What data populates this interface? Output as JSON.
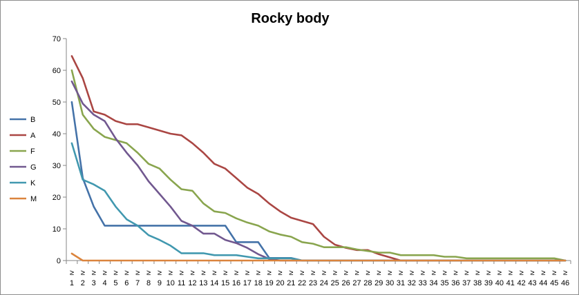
{
  "chart_data": {
    "type": "line",
    "title": "Rocky body",
    "xlabel": "",
    "ylabel": "",
    "ylim": [
      0,
      70
    ],
    "yticks": [
      "0",
      "10",
      "20",
      "30",
      "40",
      "50",
      "60",
      "70"
    ],
    "x_prefix": "≥",
    "categories": [
      "1",
      "2",
      "3",
      "4",
      "5",
      "6",
      "7",
      "8",
      "9",
      "10",
      "11",
      "12",
      "13",
      "14",
      "15",
      "16",
      "17",
      "18",
      "19",
      "20",
      "21",
      "22",
      "23",
      "24",
      "25",
      "26",
      "27",
      "28",
      "29",
      "30",
      "31",
      "32",
      "33",
      "34",
      "35",
      "36",
      "37",
      "38",
      "39",
      "40",
      "41",
      "42",
      "43",
      "44",
      "45",
      "46"
    ],
    "legend_position": "left",
    "grid": false,
    "series": [
      {
        "name": "B",
        "color": "#4472A8",
        "values": [
          50,
          26,
          17,
          11,
          11,
          11,
          11,
          11,
          11,
          11,
          11,
          11,
          11,
          11,
          11,
          5.8,
          5.8,
          5.8,
          0.8,
          0.8,
          0.8,
          0,
          0,
          0,
          0,
          0,
          0,
          0,
          0,
          0,
          0,
          0,
          0,
          0,
          0,
          0,
          0,
          0,
          0,
          0,
          0,
          0,
          0,
          0,
          0,
          0
        ]
      },
      {
        "name": "A",
        "color": "#AA4643",
        "values": [
          64.5,
          57.5,
          47,
          46,
          44,
          43,
          43,
          42,
          41,
          40,
          39.5,
          37,
          34,
          30.5,
          29,
          26,
          23,
          21,
          18,
          15.5,
          13.5,
          12.5,
          11.5,
          7.5,
          5,
          4,
          3.3,
          3.3,
          2,
          1,
          0,
          0,
          0,
          0,
          0,
          0,
          0,
          0,
          0,
          0,
          0,
          0,
          0,
          0,
          0,
          0
        ]
      },
      {
        "name": "F",
        "color": "#89A54E",
        "values": [
          60,
          46,
          41.5,
          39,
          38,
          37,
          34,
          30.5,
          29,
          25.5,
          22.5,
          22,
          18,
          15.5,
          15,
          13.3,
          12,
          11,
          9.2,
          8.2,
          7.5,
          5.8,
          5.3,
          4.2,
          4.2,
          4.2,
          3.5,
          3,
          2.5,
          2.5,
          1.7,
          1.7,
          1.7,
          1.7,
          1.2,
          1.2,
          0.7,
          0.7,
          0.7,
          0.7,
          0.7,
          0.7,
          0.7,
          0.7,
          0.7,
          0
        ]
      },
      {
        "name": "G",
        "color": "#71588F",
        "values": [
          56.5,
          49.5,
          46,
          44,
          38.5,
          34,
          30,
          25,
          21,
          17,
          12.5,
          11,
          8.5,
          8.5,
          6.5,
          5.5,
          4,
          2,
          0.5,
          0,
          0,
          0,
          0,
          0,
          0,
          0,
          0,
          0,
          0,
          0,
          0,
          0,
          0,
          0,
          0,
          0,
          0,
          0,
          0,
          0,
          0,
          0,
          0,
          0,
          0,
          0
        ]
      },
      {
        "name": "K",
        "color": "#4198AF",
        "values": [
          37,
          25.5,
          24,
          22,
          17,
          13,
          11,
          8,
          6.5,
          4.7,
          2.3,
          2.3,
          2.3,
          1.7,
          1.7,
          1.7,
          1.2,
          0.7,
          0.7,
          0.7,
          0.7,
          0,
          0,
          0,
          0,
          0,
          0,
          0,
          0,
          0,
          0,
          0,
          0,
          0,
          0,
          0,
          0,
          0,
          0,
          0,
          0,
          0,
          0,
          0,
          0,
          0
        ]
      },
      {
        "name": "M",
        "color": "#DB843D",
        "values": [
          2.2,
          0,
          0,
          0,
          0,
          0,
          0,
          0,
          0,
          0,
          0,
          0,
          0,
          0,
          0,
          0,
          0,
          0,
          0,
          0,
          0,
          0,
          0,
          0,
          0,
          0,
          0,
          0,
          0,
          0,
          0,
          0,
          0,
          0,
          0,
          0,
          0,
          0,
          0,
          0,
          0,
          0,
          0,
          0,
          0,
          0
        ]
      }
    ]
  }
}
